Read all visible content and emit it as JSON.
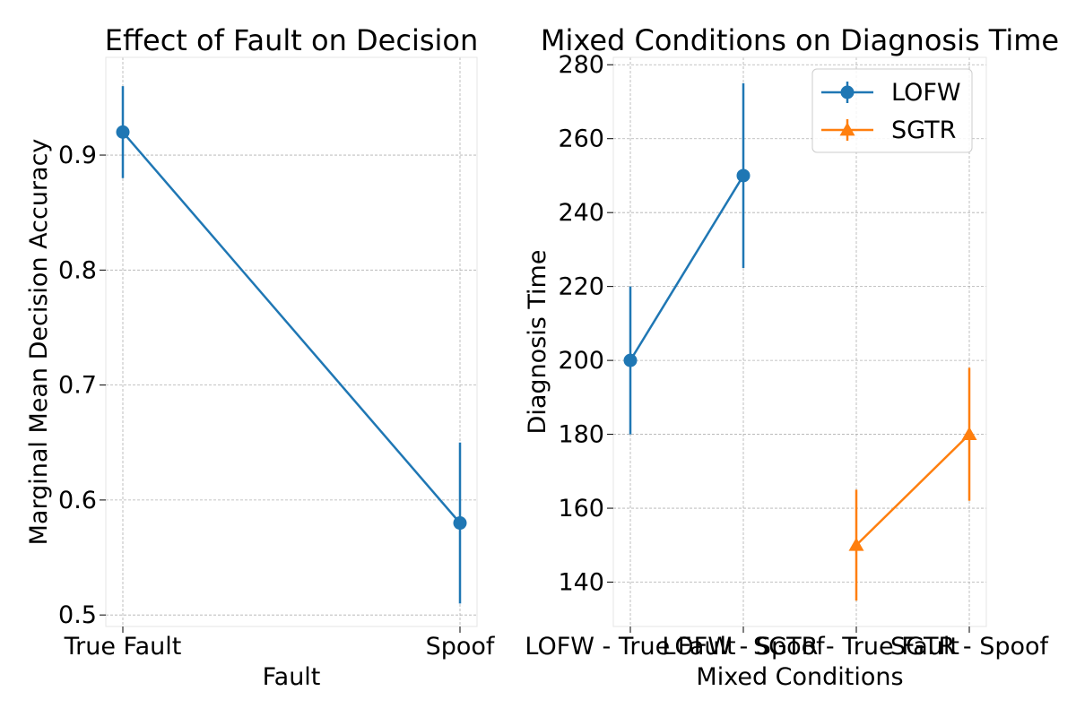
{
  "chart_data": [
    {
      "type": "line",
      "title": "Effect of Fault on Decision",
      "xlabel": "Fault",
      "ylabel": "Marginal Mean Decision Accuracy",
      "categories": [
        "True Fault",
        "Spoof"
      ],
      "ylim": [
        0.49,
        0.985
      ],
      "yticks": [
        0.5,
        0.6,
        0.7,
        0.8,
        0.9
      ],
      "yticklabels": [
        "0.5",
        "0.6",
        "0.7",
        "0.8",
        "0.9"
      ],
      "grid": true,
      "series": [
        {
          "color": "#1f77b4",
          "marker": "circle",
          "points": [
            {
              "x": "True Fault",
              "y": 0.92,
              "err_low": 0.88,
              "err_high": 0.96
            },
            {
              "x": "Spoof",
              "y": 0.58,
              "err_low": 0.51,
              "err_high": 0.65
            }
          ]
        }
      ]
    },
    {
      "type": "line",
      "title": "Mixed Conditions on Diagnosis Time",
      "xlabel": "Mixed Conditions",
      "ylabel": "Diagnosis Time",
      "categories": [
        "LOFW - True Fault",
        "LOFW - Spoof",
        "SGTR - True Fault",
        "SGTR - Spoof"
      ],
      "ylim": [
        128,
        282
      ],
      "yticks": [
        140,
        160,
        180,
        200,
        220,
        240,
        260,
        280
      ],
      "yticklabels": [
        "140",
        "160",
        "180",
        "200",
        "220",
        "240",
        "260",
        "280"
      ],
      "grid": true,
      "legend_position": "top-right",
      "series": [
        {
          "name": "LOFW",
          "color": "#1f77b4",
          "marker": "circle",
          "points": [
            {
              "x": "LOFW - True Fault",
              "y": 200,
              "err_low": 180,
              "err_high": 220
            },
            {
              "x": "LOFW - Spoof",
              "y": 250,
              "err_low": 225,
              "err_high": 275
            }
          ]
        },
        {
          "name": "SGTR",
          "color": "#ff7f0e",
          "marker": "triangle",
          "points": [
            {
              "x": "SGTR - True Fault",
              "y": 150,
              "err_low": 135,
              "err_high": 165
            },
            {
              "x": "SGTR - Spoof",
              "y": 180,
              "err_low": 162,
              "err_high": 198
            }
          ]
        }
      ]
    }
  ]
}
